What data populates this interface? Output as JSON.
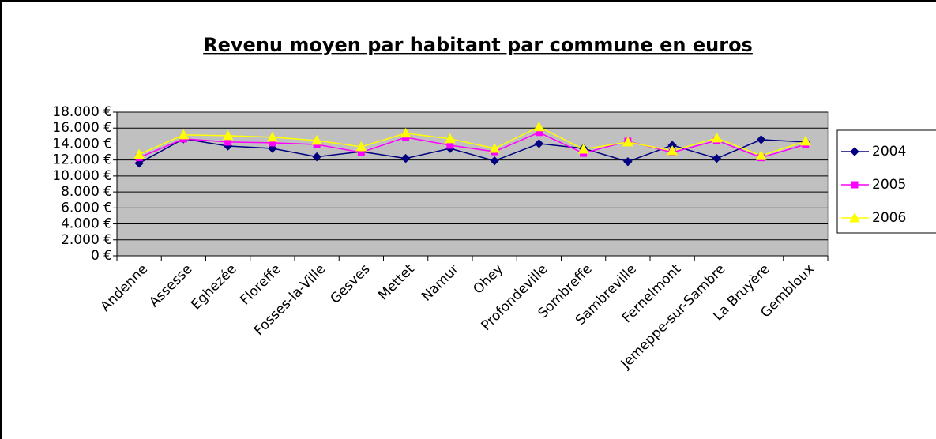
{
  "chart_data": {
    "type": "line",
    "title": "Revenu moyen par habitant par commune en euros",
    "categories": [
      "Andenne",
      "Assesse",
      "Eghezée",
      "Floreffe",
      "Fosses-la-Ville",
      "Gesves",
      "Mettet",
      "Namur",
      "Ohey",
      "Profondeville",
      "Sombreffe",
      "Sambreville",
      "Fernelmont",
      "Jemeppe-sur-Sambre",
      "La Bruyère",
      "Gembloux"
    ],
    "series": [
      {
        "name": "2004",
        "color": "#000080",
        "marker": "diamond",
        "values": [
          11600,
          14650,
          13750,
          13450,
          12400,
          13050,
          12200,
          13450,
          11900,
          14050,
          13450,
          11800,
          13850,
          12200,
          14550,
          14250
        ]
      },
      {
        "name": "2005",
        "color": "#ff00ff",
        "marker": "square",
        "values": [
          12300,
          14650,
          14250,
          14150,
          13950,
          12950,
          14850,
          13850,
          13050,
          15450,
          12850,
          14350,
          12950,
          14450,
          12300,
          13950
        ]
      },
      {
        "name": "2006",
        "color": "#ffff00",
        "marker": "triangle",
        "values": [
          12700,
          15150,
          15050,
          14850,
          14450,
          13650,
          15350,
          14650,
          13450,
          16150,
          13350,
          14250,
          13150,
          14750,
          12550,
          14350
        ]
      }
    ],
    "ylim": [
      0,
      18000
    ],
    "yticks": [
      {
        "value": 0,
        "label": "0 €"
      },
      {
        "value": 2000,
        "label": "2.000 €"
      },
      {
        "value": 4000,
        "label": "4.000 €"
      },
      {
        "value": 6000,
        "label": "6.000 €"
      },
      {
        "value": 8000,
        "label": "8.000 €"
      },
      {
        "value": 10000,
        "label": "10.000 €"
      },
      {
        "value": 12000,
        "label": "12.000 €"
      },
      {
        "value": 14000,
        "label": "14.000 €"
      },
      {
        "value": 16000,
        "label": "16.000 €"
      },
      {
        "value": 18000,
        "label": "18.000 €"
      }
    ],
    "grid": true,
    "legend": "right",
    "plot_background": "#c0c0c0"
  }
}
